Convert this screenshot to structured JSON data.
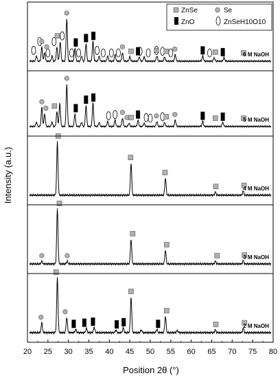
{
  "chart_data": {
    "type": "line",
    "xlabel": "Position 2θ (°)",
    "ylabel": "Intensity (a.u.)",
    "xlim": [
      20,
      80
    ],
    "xticks": [
      20,
      25,
      30,
      35,
      40,
      45,
      50,
      55,
      60,
      65,
      70,
      75,
      80
    ],
    "grid": false,
    "legend_position": "top-right",
    "legend": [
      {
        "label": "ZnSe",
        "marker": "gray-square"
      },
      {
        "label": "Se",
        "marker": "gray-circle"
      },
      {
        "label": "ZnO",
        "marker": "black-bar"
      },
      {
        "label": "ZnSeH10O10",
        "marker": "open-ellipse"
      }
    ],
    "panels": [
      {
        "label": "6 M NaOH",
        "peaks": [
          [
            22.2,
            0.12
          ],
          [
            23.5,
            0.32
          ],
          [
            24.2,
            0.2
          ],
          [
            26.0,
            0.12
          ],
          [
            27.2,
            0.32
          ],
          [
            28.0,
            0.45
          ],
          [
            29.6,
            0.97
          ],
          [
            31.6,
            0.3
          ],
          [
            33.2,
            0.12
          ],
          [
            34.3,
            0.4
          ],
          [
            36.0,
            0.45
          ],
          [
            37.5,
            0.12
          ],
          [
            39.6,
            0.12
          ],
          [
            41.4,
            0.15
          ],
          [
            43.2,
            0.2
          ],
          [
            45.0,
            0.1
          ],
          [
            47.3,
            0.1
          ],
          [
            48.5,
            0.1
          ],
          [
            51.6,
            0.12
          ],
          [
            53.5,
            0.1
          ],
          [
            56.1,
            0.15
          ],
          [
            62.8,
            0.12
          ],
          [
            65.6,
            0.08
          ],
          [
            68.0,
            0.08
          ]
        ],
        "markers": [
          {
            "type": "ellipse",
            "x": [
              21.5,
              23.0,
              25.0,
              26.5,
              28.5,
              30.8,
              32.5,
              37.0,
              38.5,
              40.5,
              42.2,
              47.5,
              49.5,
              51.5,
              53.0,
              55.0,
              64.5
            ]
          },
          {
            "type": "circle",
            "x": [
              23.5,
              24.7,
              29.6,
              43.2,
              51.5,
              56.0
            ]
          },
          {
            "type": "square",
            "x": [
              27.3,
              45.3,
              53.9,
              65.9,
              72.8
            ]
          },
          {
            "type": "bar",
            "x": [
              31.8,
              34.3,
              36.1,
              47.0,
              62.8,
              67.7
            ]
          }
        ]
      },
      {
        "label": "5 M NaOH",
        "peaks": [
          [
            22.2,
            0.1
          ],
          [
            23.5,
            0.45
          ],
          [
            24.2,
            0.3
          ],
          [
            26.0,
            0.1
          ],
          [
            27.2,
            0.35
          ],
          [
            27.9,
            0.55
          ],
          [
            29.6,
            1.0
          ],
          [
            31.6,
            0.3
          ],
          [
            33.2,
            0.1
          ],
          [
            34.3,
            0.5
          ],
          [
            36.0,
            0.55
          ],
          [
            37.5,
            0.1
          ],
          [
            39.6,
            0.12
          ],
          [
            41.4,
            0.15
          ],
          [
            43.2,
            0.2
          ],
          [
            44.8,
            0.08
          ],
          [
            47.0,
            0.15
          ],
          [
            48.5,
            0.08
          ],
          [
            51.6,
            0.12
          ],
          [
            53.5,
            0.1
          ],
          [
            56.1,
            0.15
          ],
          [
            62.8,
            0.12
          ],
          [
            67.7,
            0.1
          ]
        ],
        "markers": [
          {
            "type": "ellipse",
            "x": [
              39.8,
              41.4,
              49.0,
              50.0,
              53.0
            ]
          },
          {
            "type": "circle",
            "x": [
              23.5,
              24.5,
              29.6,
              43.2,
              44.3,
              51.5,
              56.0
            ]
          },
          {
            "type": "square",
            "x": [
              26.6,
              45.3,
              53.9,
              65.9,
              72.8
            ]
          },
          {
            "type": "bar",
            "x": [
              31.8,
              34.3,
              36.1,
              47.0,
              62.8,
              67.7
            ]
          }
        ]
      },
      {
        "label": "4 M NaOH",
        "peaks": [
          [
            27.3,
            1.0
          ],
          [
            45.3,
            0.6
          ],
          [
            53.7,
            0.32
          ],
          [
            65.9,
            0.06
          ],
          [
            72.7,
            0.08
          ]
        ],
        "markers": [
          {
            "type": "square",
            "x": [
              27.5,
              45.2,
              53.6,
              66.0,
              72.9
            ]
          }
        ]
      },
      {
        "label": "3 M NaOH",
        "peaks": [
          [
            23.5,
            0.05
          ],
          [
            27.3,
            1.0
          ],
          [
            29.7,
            0.05
          ],
          [
            45.3,
            0.45
          ],
          [
            53.7,
            0.25
          ],
          [
            65.9,
            0.05
          ],
          [
            72.7,
            0.06
          ]
        ],
        "markers": [
          {
            "type": "square",
            "x": [
              27.8,
              45.7,
              54.0,
              66.3,
              73.0
            ]
          },
          {
            "type": "circle",
            "x": [
              23.5,
              29.7
            ]
          }
        ]
      },
      {
        "label": "2 M NaOH",
        "peaks": [
          [
            23.5,
            0.18
          ],
          [
            27.3,
            1.0
          ],
          [
            29.6,
            0.28
          ],
          [
            31.8,
            0.06
          ],
          [
            34.4,
            0.08
          ],
          [
            36.3,
            0.1
          ],
          [
            41.6,
            0.05
          ],
          [
            43.4,
            0.09
          ],
          [
            45.3,
            0.65
          ],
          [
            47.8,
            0.05
          ],
          [
            51.6,
            0.06
          ],
          [
            53.7,
            0.3
          ],
          [
            56.6,
            0.04
          ],
          [
            65.9,
            0.05
          ],
          [
            72.7,
            0.08
          ]
        ],
        "markers": [
          {
            "type": "square",
            "x": [
              27.0,
              45.3,
              54.0,
              66.0,
              73.0
            ]
          },
          {
            "type": "circle",
            "x": [
              23.3,
              29.2
            ]
          },
          {
            "type": "bar",
            "x": [
              31.3,
              33.9,
              36.0,
              41.8,
              43.5,
              51.9
            ]
          }
        ]
      }
    ]
  }
}
